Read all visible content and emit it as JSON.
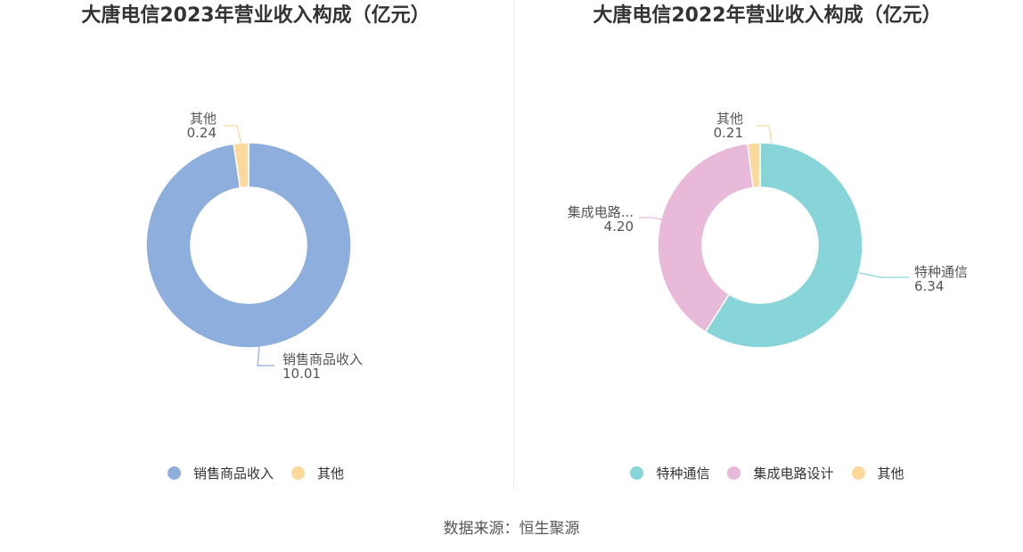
{
  "source_text": "数据来源：恒生聚源",
  "chart_data": [
    {
      "type": "pie",
      "variant": "donut",
      "title": "大唐电信2023年营业收入构成（亿元）",
      "unit": "亿元",
      "slices": [
        {
          "name": "销售商品收入",
          "label": "销售商品收入",
          "value": 10.01,
          "value_text": "10.01",
          "color": "#8eaedd"
        },
        {
          "name": "其他",
          "label": "其他",
          "value": 0.24,
          "value_text": "0.24",
          "color": "#fbd89c"
        }
      ],
      "legend": {
        "position": "bottom",
        "items": [
          "销售商品收入",
          "其他"
        ]
      }
    },
    {
      "type": "pie",
      "variant": "donut",
      "title": "大唐电信2022年营业收入构成（亿元）",
      "unit": "亿元",
      "slices": [
        {
          "name": "特种通信",
          "label": "特种通信",
          "value": 6.34,
          "value_text": "6.34",
          "color": "#88d5d9"
        },
        {
          "name": "集成电路设计",
          "label": "集成电路...",
          "value": 4.2,
          "value_text": "4.20",
          "color": "#e8b9d9"
        },
        {
          "name": "其他",
          "label": "其他",
          "value": 0.21,
          "value_text": "0.21",
          "color": "#fbd89c"
        }
      ],
      "legend": {
        "position": "bottom",
        "items": [
          "特种通信",
          "集成电路设计",
          "其他"
        ]
      }
    }
  ]
}
